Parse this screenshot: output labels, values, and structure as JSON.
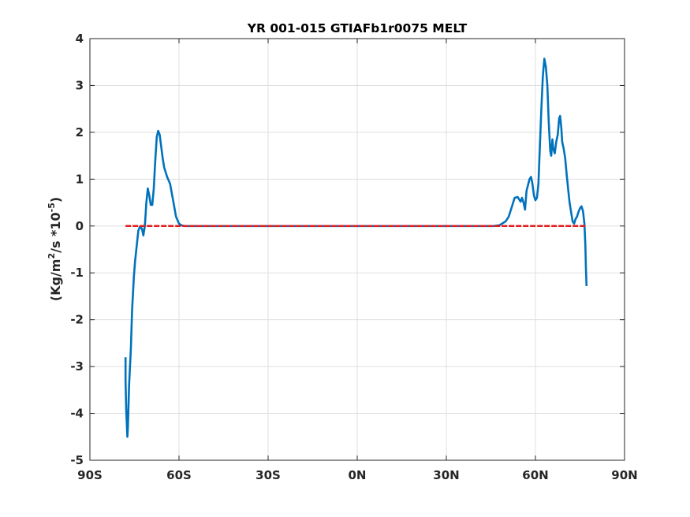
{
  "chart_data": {
    "type": "line",
    "title": "YR 001-015 GTIAFb1r0075 MELT",
    "xlabel": "",
    "ylabel": {
      "prefix": "(Kg/m",
      "sup1": "2",
      "mid": "/s   *10",
      "sup2": "-5",
      "suffix": ")"
    },
    "xlim": [
      -90,
      90
    ],
    "ylim": [
      -5,
      4
    ],
    "x_ticks": [
      {
        "value": -90,
        "label": "90S"
      },
      {
        "value": -60,
        "label": "60S"
      },
      {
        "value": -30,
        "label": "30S"
      },
      {
        "value": 0,
        "label": "0N"
      },
      {
        "value": 30,
        "label": "30N"
      },
      {
        "value": 60,
        "label": "60N"
      },
      {
        "value": 90,
        "label": "90N"
      }
    ],
    "y_ticks": [
      {
        "value": 4,
        "label": "4"
      },
      {
        "value": 3,
        "label": "3"
      },
      {
        "value": 2,
        "label": "2"
      },
      {
        "value": 1,
        "label": "1"
      },
      {
        "value": 0,
        "label": "0"
      },
      {
        "value": -1,
        "label": "-1"
      },
      {
        "value": -2,
        "label": "-2"
      },
      {
        "value": -3,
        "label": "-3"
      },
      {
        "value": -4,
        "label": "-4"
      },
      {
        "value": -5,
        "label": "-5"
      }
    ],
    "grid": true,
    "series": [
      {
        "color": "#0072BD",
        "style": "solid",
        "points": [
          [
            -78,
            -2.8
          ],
          [
            -78,
            -3.3
          ],
          [
            -77.8,
            -3.9
          ],
          [
            -77.4,
            -4.5
          ],
          [
            -77.2,
            -4.3
          ],
          [
            -76.8,
            -3.4
          ],
          [
            -76.2,
            -2.6
          ],
          [
            -75.8,
            -1.8
          ],
          [
            -75.2,
            -1.1
          ],
          [
            -74.8,
            -0.75
          ],
          [
            -74.2,
            -0.4
          ],
          [
            -73.7,
            -0.1
          ],
          [
            -73.2,
            -0.02
          ],
          [
            -72.5,
            -0.05
          ],
          [
            -72,
            -0.2
          ],
          [
            -71.5,
            0.0
          ],
          [
            -71,
            0.5
          ],
          [
            -70.5,
            0.8
          ],
          [
            -70,
            0.65
          ],
          [
            -69.5,
            0.45
          ],
          [
            -69,
            0.45
          ],
          [
            -68.5,
            0.8
          ],
          [
            -68,
            1.4
          ],
          [
            -67.5,
            1.9
          ],
          [
            -67,
            2.03
          ],
          [
            -66.5,
            1.95
          ],
          [
            -66,
            1.7
          ],
          [
            -65.5,
            1.45
          ],
          [
            -65,
            1.25
          ],
          [
            -64,
            1.05
          ],
          [
            -63,
            0.9
          ],
          [
            -62,
            0.55
          ],
          [
            -61,
            0.2
          ],
          [
            -60,
            0.05
          ],
          [
            -59,
            0.01
          ],
          [
            -58,
            0.0
          ],
          [
            -50,
            0.0
          ],
          [
            -30,
            0.0
          ],
          [
            0,
            0.0
          ],
          [
            30,
            0.0
          ],
          [
            46,
            0.0
          ],
          [
            48,
            0.02
          ],
          [
            50,
            0.1
          ],
          [
            51,
            0.2
          ],
          [
            52,
            0.4
          ],
          [
            53,
            0.6
          ],
          [
            54,
            0.62
          ],
          [
            55,
            0.52
          ],
          [
            55.5,
            0.6
          ],
          [
            56,
            0.5
          ],
          [
            56.5,
            0.35
          ],
          [
            57,
            0.75
          ],
          [
            58,
            1.0
          ],
          [
            58.5,
            1.05
          ],
          [
            59,
            0.9
          ],
          [
            59.5,
            0.65
          ],
          [
            60,
            0.55
          ],
          [
            60.5,
            0.6
          ],
          [
            61,
            0.9
          ],
          [
            61.5,
            1.7
          ],
          [
            62,
            2.5
          ],
          [
            62.5,
            3.2
          ],
          [
            63,
            3.57
          ],
          [
            63.5,
            3.4
          ],
          [
            64,
            3.0
          ],
          [
            64.5,
            2.2
          ],
          [
            65,
            1.6
          ],
          [
            65.3,
            1.5
          ],
          [
            65.7,
            1.85
          ],
          [
            66,
            1.65
          ],
          [
            66.5,
            1.55
          ],
          [
            67,
            1.8
          ],
          [
            67.5,
            1.95
          ],
          [
            68,
            2.3
          ],
          [
            68.3,
            2.35
          ],
          [
            68.7,
            2.1
          ],
          [
            69,
            1.8
          ],
          [
            69.5,
            1.65
          ],
          [
            70,
            1.45
          ],
          [
            70.5,
            1.1
          ],
          [
            71,
            0.8
          ],
          [
            71.5,
            0.5
          ],
          [
            72,
            0.3
          ],
          [
            72.5,
            0.1
          ],
          [
            73,
            0.05
          ],
          [
            73.5,
            0.15
          ],
          [
            74,
            0.2
          ],
          [
            74.5,
            0.3
          ],
          [
            75,
            0.38
          ],
          [
            75.5,
            0.42
          ],
          [
            76,
            0.32
          ],
          [
            76.5,
            0.05
          ],
          [
            76.8,
            -0.4
          ],
          [
            77,
            -0.9
          ],
          [
            77.2,
            -1.28
          ]
        ]
      },
      {
        "color": "#E41A1C",
        "style": "dashed",
        "points": [
          [
            -78,
            0.0
          ],
          [
            -60,
            0.0
          ],
          [
            -30,
            0.0
          ],
          [
            0,
            0.0
          ],
          [
            30,
            0.0
          ],
          [
            60,
            0.0
          ],
          [
            77,
            0.0
          ]
        ]
      }
    ]
  }
}
